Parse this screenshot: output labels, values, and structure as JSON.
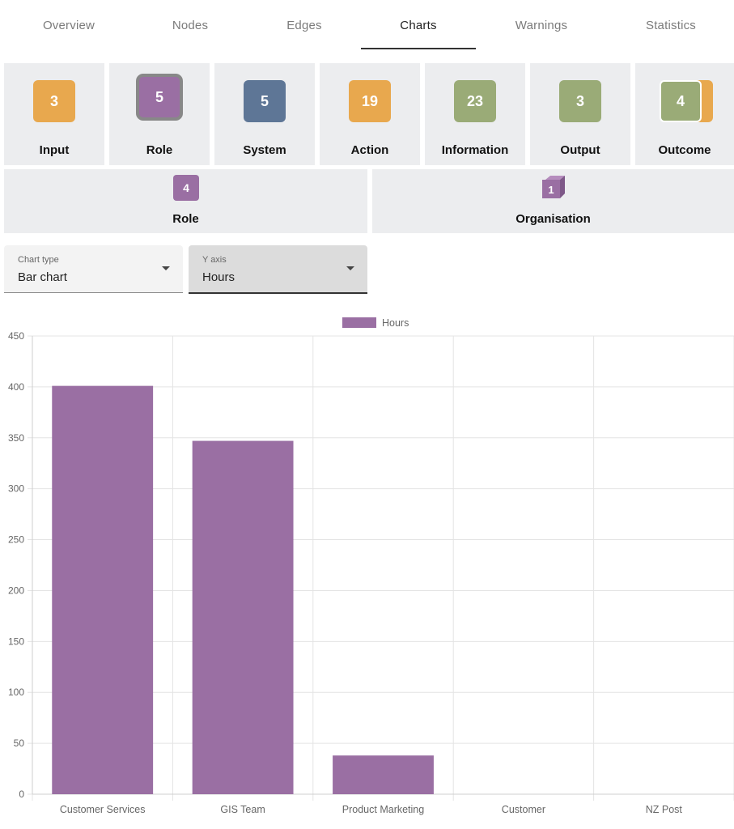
{
  "tabs": [
    {
      "label": "Overview",
      "active": false
    },
    {
      "label": "Nodes",
      "active": false
    },
    {
      "label": "Edges",
      "active": false
    },
    {
      "label": "Charts",
      "active": true
    },
    {
      "label": "Warnings",
      "active": false
    },
    {
      "label": "Statistics",
      "active": false
    }
  ],
  "node_types": [
    {
      "count": "3",
      "label": "Input",
      "color": "#e8a84e"
    },
    {
      "count": "5",
      "label": "Role",
      "color": "#9a6fa3",
      "selected": true
    },
    {
      "count": "5",
      "label": "System",
      "color": "#5e7696"
    },
    {
      "count": "19",
      "label": "Action",
      "color": "#e8a84e"
    },
    {
      "count": "23",
      "label": "Information",
      "color": "#9aab77"
    },
    {
      "count": "3",
      "label": "Output",
      "color": "#9aab77"
    },
    {
      "count": "4",
      "label": "Outcome",
      "color": "#9aab77",
      "back_color": "#e8a84e"
    }
  ],
  "groups": [
    {
      "count": "4",
      "label": "Role",
      "color": "#9a6fa3",
      "icon": "square-icon"
    },
    {
      "count": "1",
      "label": "Organisation",
      "color": "#9a6fa3",
      "icon": "cube-icon"
    }
  ],
  "controls": {
    "chart_type": {
      "label": "Chart type",
      "value": "Bar chart"
    },
    "y_axis": {
      "label": "Y axis",
      "value": "Hours"
    }
  },
  "chart_data": {
    "type": "bar",
    "categories": [
      "Customer Services",
      "GIS Team",
      "Product Marketing",
      "Customer",
      "NZ Post"
    ],
    "series": [
      {
        "name": "Hours",
        "values": [
          401,
          347,
          38,
          0,
          0
        ],
        "color": "#9a6fa3"
      }
    ],
    "ylim": [
      0,
      450
    ],
    "yticks": [
      0,
      50,
      100,
      150,
      200,
      250,
      300,
      350,
      400,
      450
    ],
    "legend_position": "top-center",
    "grid": true
  }
}
